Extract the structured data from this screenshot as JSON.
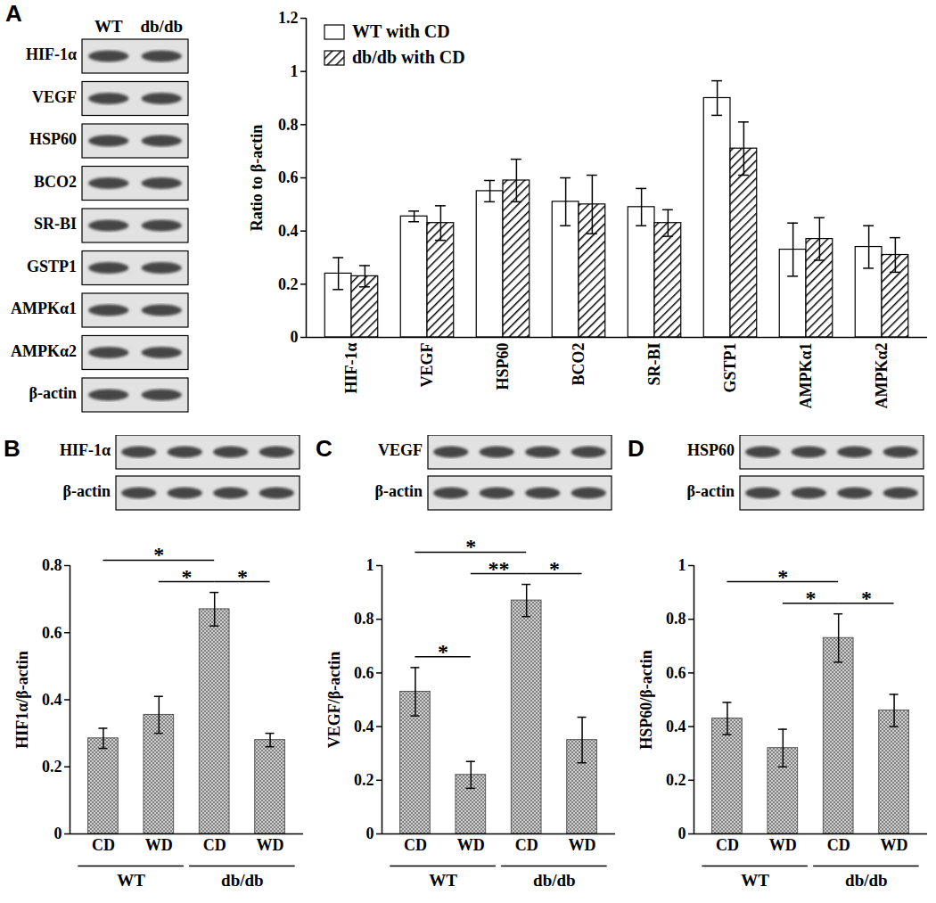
{
  "chart_data": [
    {
      "panel": "A",
      "type": "bar",
      "blot": {
        "lanes": [
          "WT",
          "db/db"
        ],
        "rows": [
          "HIF-1α",
          "VEGF",
          "HSP60",
          "BCO2",
          "SR-BI",
          "GSTP1",
          "AMPKα1",
          "AMPKα2",
          "β-actin"
        ]
      },
      "categories": [
        "HIF-1α",
        "VEGF",
        "HSP60",
        "BCO2",
        "SR-BI",
        "GSTP1",
        "AMPKα1",
        "AMPKα2"
      ],
      "series": [
        {
          "name": "WT with CD",
          "color": "#ffffff",
          "values": [
            0.24,
            0.455,
            0.55,
            0.51,
            0.49,
            0.9,
            0.33,
            0.34
          ],
          "errors": [
            0.06,
            0.02,
            0.04,
            0.09,
            0.07,
            0.065,
            0.1,
            0.08
          ]
        },
        {
          "name": "db/db with CD",
          "color": "#000000",
          "values": [
            0.23,
            0.43,
            0.59,
            0.5,
            0.43,
            0.71,
            0.37,
            0.31
          ],
          "errors": [
            0.04,
            0.065,
            0.08,
            0.11,
            0.05,
            0.1,
            0.08,
            0.065
          ]
        }
      ],
      "y_label": "Ratio to β-actin",
      "ylim": [
        0,
        1.2
      ],
      "yticks": [
        0,
        0.2,
        0.4,
        0.6,
        0.8,
        1,
        1.2
      ],
      "legend": "top-left"
    },
    {
      "panel": "B",
      "type": "bar",
      "blot": {
        "rows": [
          "HIF-1α",
          "β-actin"
        ]
      },
      "categories": [
        "CD",
        "WD",
        "CD",
        "WD"
      ],
      "groups": [
        {
          "name": "WT",
          "size": 2
        },
        {
          "name": "db/db",
          "size": 2
        }
      ],
      "values": [
        0.285,
        0.355,
        0.67,
        0.28
      ],
      "errors": [
        0.03,
        0.055,
        0.05,
        0.02
      ],
      "color": "#808080",
      "y_label": "HIF1α/β-actin",
      "ylim": [
        0,
        0.8
      ],
      "yticks": [
        0,
        0.2,
        0.4,
        0.6,
        0.8
      ],
      "significance": [
        {
          "from": 0,
          "to": 2,
          "label": "*"
        },
        {
          "from": 1,
          "to": 2,
          "label": "*"
        },
        {
          "from": 2,
          "to": 3,
          "label": "*"
        }
      ]
    },
    {
      "panel": "C",
      "type": "bar",
      "blot": {
        "rows": [
          "VEGF",
          "β-actin"
        ]
      },
      "categories": [
        "CD",
        "WD",
        "CD",
        "WD"
      ],
      "groups": [
        {
          "name": "WT",
          "size": 2
        },
        {
          "name": "db/db",
          "size": 2
        }
      ],
      "values": [
        0.53,
        0.22,
        0.87,
        0.35
      ],
      "errors": [
        0.09,
        0.05,
        0.06,
        0.085
      ],
      "color": "#808080",
      "y_label": "VEGF/β-actin",
      "ylim": [
        0,
        1
      ],
      "yticks": [
        0,
        0.2,
        0.4,
        0.6,
        0.8,
        1
      ],
      "significance": [
        {
          "from": 0,
          "to": 1,
          "label": "*"
        },
        {
          "from": 0,
          "to": 2,
          "label": "*"
        },
        {
          "from": 1,
          "to": 2,
          "label": "**"
        },
        {
          "from": 2,
          "to": 3,
          "label": "*"
        }
      ]
    },
    {
      "panel": "D",
      "type": "bar",
      "blot": {
        "rows": [
          "HSP60",
          "β-actin"
        ]
      },
      "categories": [
        "CD",
        "WD",
        "CD",
        "WD"
      ],
      "groups": [
        {
          "name": "WT",
          "size": 2
        },
        {
          "name": "db/db",
          "size": 2
        }
      ],
      "values": [
        0.43,
        0.32,
        0.73,
        0.46
      ],
      "errors": [
        0.06,
        0.07,
        0.09,
        0.06
      ],
      "color": "#808080",
      "y_label": "HSP60/β-actin",
      "ylim": [
        0,
        1
      ],
      "yticks": [
        0,
        0.2,
        0.4,
        0.6,
        0.8,
        1
      ],
      "significance": [
        {
          "from": 0,
          "to": 2,
          "label": "*"
        },
        {
          "from": 1,
          "to": 2,
          "label": "*"
        },
        {
          "from": 2,
          "to": 3,
          "label": "*"
        }
      ]
    }
  ]
}
